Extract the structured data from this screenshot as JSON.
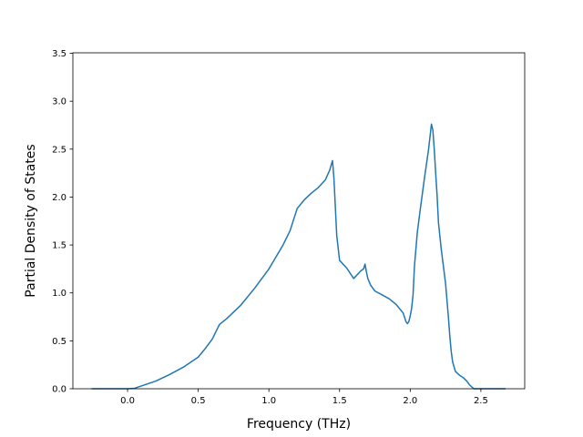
{
  "chart_data": {
    "type": "line",
    "title": "",
    "xlabel": "Frequency (THz)",
    "ylabel": "Partial Density of States",
    "xlim": [
      -0.387,
      2.81
    ],
    "ylim": [
      0.0,
      3.505
    ],
    "xticks": [
      0.0,
      0.5,
      1.0,
      1.5,
      2.0,
      2.5
    ],
    "xtick_labels": [
      "0.0",
      "0.5",
      "1.0",
      "1.5",
      "2.0",
      "2.5"
    ],
    "yticks": [
      0.0,
      0.5,
      1.0,
      1.5,
      2.0,
      2.5,
      3.0,
      3.5
    ],
    "ytick_labels": [
      "0.0",
      "0.5",
      "1.0",
      "1.5",
      "2.0",
      "2.5",
      "3.0",
      "3.5"
    ],
    "grid": false,
    "legend": null,
    "series": [
      {
        "color": "#1f77b4",
        "x": [
          -0.25,
          0.0,
          0.05,
          0.1,
          0.2,
          0.3,
          0.4,
          0.5,
          0.55,
          0.6,
          0.62,
          0.65,
          0.7,
          0.8,
          0.9,
          1.0,
          1.1,
          1.15,
          1.2,
          1.25,
          1.3,
          1.35,
          1.4,
          1.43,
          1.45,
          1.46,
          1.48,
          1.5,
          1.55,
          1.6,
          1.65,
          1.67,
          1.68,
          1.69,
          1.7,
          1.72,
          1.75,
          1.8,
          1.85,
          1.9,
          1.95,
          1.97,
          1.98,
          1.99,
          2.0,
          2.01,
          2.02,
          2.03,
          2.05,
          2.07,
          2.1,
          2.13,
          2.15,
          2.16,
          2.17,
          2.18,
          2.19,
          2.2,
          2.22,
          2.25,
          2.27,
          2.28,
          2.29,
          2.3,
          2.32,
          2.35,
          2.38,
          2.4,
          2.42,
          2.45,
          2.5,
          2.6,
          2.67
        ],
        "y": [
          0.0,
          0.0,
          0.005,
          0.03,
          0.08,
          0.15,
          0.23,
          0.33,
          0.42,
          0.52,
          0.58,
          0.67,
          0.73,
          0.87,
          1.05,
          1.25,
          1.5,
          1.65,
          1.88,
          1.97,
          2.04,
          2.1,
          2.18,
          2.28,
          2.38,
          2.2,
          1.6,
          1.34,
          1.26,
          1.15,
          1.23,
          1.25,
          1.3,
          1.22,
          1.15,
          1.08,
          1.02,
          0.98,
          0.94,
          0.88,
          0.79,
          0.7,
          0.68,
          0.7,
          0.76,
          0.84,
          0.98,
          1.28,
          1.63,
          1.86,
          2.19,
          2.5,
          2.76,
          2.7,
          2.5,
          2.25,
          2.02,
          1.73,
          1.45,
          1.1,
          0.75,
          0.55,
          0.39,
          0.28,
          0.18,
          0.14,
          0.11,
          0.08,
          0.04,
          0.0,
          0.0,
          0.0,
          0.0
        ]
      }
    ]
  }
}
